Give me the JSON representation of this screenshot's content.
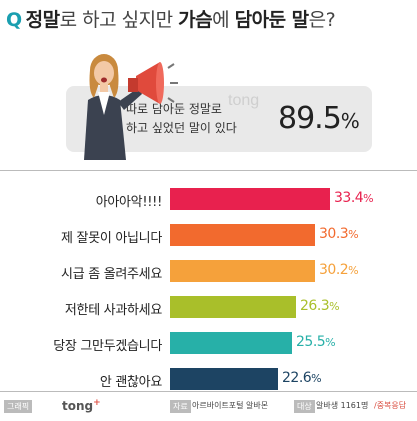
{
  "title": {
    "q": "Q",
    "part1": "정말",
    "part2": "로 하고 싶지만 ",
    "part3": "가슴",
    "part4": "에 ",
    "part5": "담아둔 말",
    "part6": "은?"
  },
  "stat": {
    "line1": "따로 담아둔 정말로",
    "line2": "하고 싶었던 말이 있다",
    "value": "89.5",
    "unit": "%"
  },
  "watermark": "tong",
  "chart_data": {
    "type": "bar",
    "orientation": "horizontal",
    "categories": [
      "아아아악!!!!",
      "제 잘못이 아닙니다",
      "시급 좀 올려주세요",
      "저한테 사과하세요",
      "당장 그만두겠습니다",
      "안 괜찮아요"
    ],
    "values": [
      33.4,
      30.3,
      30.2,
      26.3,
      25.5,
      22.6
    ],
    "value_labels": [
      "33.4",
      "30.3",
      "30.2",
      "26.3",
      "25.5",
      "22.6"
    ],
    "unit": "%",
    "colors": [
      "#e8214e",
      "#f26a2e",
      "#f5a13b",
      "#a9bf2a",
      "#27b0a8",
      "#1d4463"
    ]
  },
  "footer": {
    "graphic_tag": "그래픽",
    "brand": "tong",
    "brand_plus": "+",
    "source_tag": "자료",
    "source": "아르바이트포털 알바몬",
    "target_tag": "대상",
    "target": "알바생 1161명",
    "note": "/중복응답"
  }
}
